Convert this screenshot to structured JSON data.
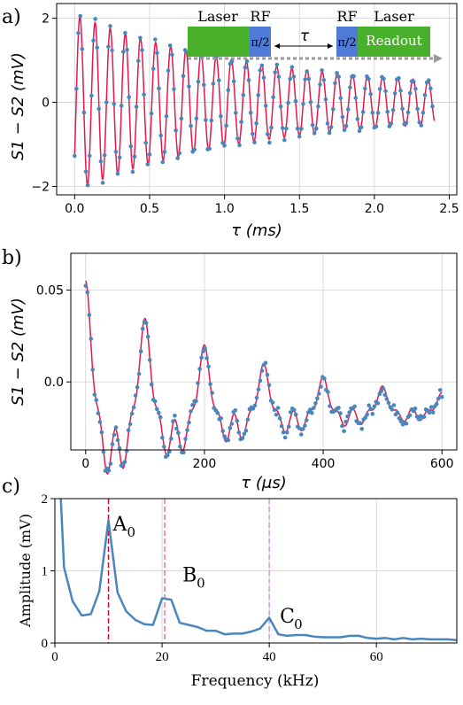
{
  "panels": {
    "a": {
      "tag": "a)"
    },
    "b": {
      "tag": "b)"
    },
    "c": {
      "tag": "c)"
    }
  },
  "schematic": {
    "laser1": "Laser",
    "rf1": "RF",
    "pulse1": "π/2",
    "tau": "τ",
    "rf2": "RF",
    "pulse2": "π/2",
    "laser2": "Laser",
    "readout": "Readout",
    "colors": {
      "laser": "#48b02a",
      "rf": "#4f7bd6",
      "arrow": "#9a9a9a"
    }
  },
  "colors": {
    "fit": "#e4184a",
    "data": "#4a86be",
    "A0": "#c8102e",
    "B0": "#e07aa0",
    "C0": "#cc99e0",
    "fft": "#4a86be"
  },
  "chart_data": [
    {
      "type": "scatter",
      "panel": "a",
      "xlabel": "τ (ms)",
      "ylabel": "S1 − S2 (mV)",
      "xlim": [
        -0.12,
        2.55
      ],
      "ylim": [
        -2.2,
        2.35
      ],
      "xticks": [
        0.0,
        0.5,
        1.0,
        1.5,
        2.0,
        2.5
      ],
      "xtick_labels": [
        "0.0",
        "0.5",
        "1.0",
        "1.5",
        "2.0",
        "2.5"
      ],
      "yticks": [
        -2,
        0,
        2
      ],
      "ytick_labels": [
        "−2",
        "0",
        "2"
      ],
      "grid": true,
      "model": {
        "amplitude_mV": 2.1,
        "frequency_kHz": 9.9,
        "decay_ms": 1.15,
        "floor_mV": 0.3,
        "phase_rad": -2.2,
        "offset_mV": 0.0
      },
      "x_range": [
        0.0,
        2.4
      ],
      "series": [
        {
          "kind": "data-points",
          "style": "dots"
        },
        {
          "kind": "fit-curve",
          "style": "line"
        }
      ]
    },
    {
      "type": "scatter",
      "panel": "b",
      "xlabel": "τ (μs)",
      "ylabel": "S1 − S2 (mV)",
      "xlim": [
        -25,
        625
      ],
      "ylim": [
        -0.037,
        0.07
      ],
      "xticks": [
        0,
        200,
        400,
        600
      ],
      "xtick_labels": [
        "0",
        "200",
        "400",
        "600"
      ],
      "yticks": [
        0.0,
        0.05
      ],
      "ytick_labels": [
        "0.0",
        "0.05"
      ],
      "grid": true,
      "model": {
        "components": [
          {
            "amplitude_mV": 0.042,
            "frequency_kHz": 10.0,
            "decay_us": 260
          },
          {
            "amplitude_mV": 0.018,
            "frequency_kHz": 20.0,
            "decay_us": 320
          },
          {
            "amplitude_mV": 0.01,
            "frequency_kHz": 40.0,
            "decay_us": 400
          }
        ],
        "offset_mV": -0.015
      },
      "x_range": [
        0,
        600
      ],
      "series": [
        {
          "kind": "data-points",
          "style": "dots"
        },
        {
          "kind": "fit-curve",
          "style": "line"
        }
      ]
    },
    {
      "type": "line",
      "panel": "c",
      "xlabel": "Frequency (kHz)",
      "ylabel": "Amplitude (mV)",
      "xlim": [
        0,
        75
      ],
      "ylim": [
        0,
        2
      ],
      "xticks": [
        0,
        20,
        40,
        60
      ],
      "xtick_labels": [
        "0",
        "20",
        "40",
        "60"
      ],
      "yticks": [
        0,
        1,
        2
      ],
      "ytick_labels": [
        "0",
        "1",
        "2"
      ],
      "grid": true,
      "x": [
        1.7,
        3.3,
        5.0,
        6.7,
        8.3,
        10.0,
        11.7,
        13.3,
        15.0,
        16.7,
        18.3,
        20.0,
        21.7,
        23.3,
        25.0,
        26.7,
        28.3,
        30.0,
        31.7,
        33.3,
        35.0,
        36.7,
        38.3,
        40.0,
        41.7,
        43.3,
        45.0,
        46.7,
        48.3,
        50.0,
        51.7,
        53.3,
        55.0,
        56.7,
        58.3,
        60.0,
        61.7,
        63.3,
        65.0,
        66.7,
        68.3,
        70.0,
        71.7,
        73.3,
        75.0
      ],
      "values": [
        1.05,
        0.58,
        0.38,
        0.4,
        0.72,
        1.7,
        0.7,
        0.44,
        0.32,
        0.26,
        0.25,
        0.62,
        0.6,
        0.28,
        0.25,
        0.22,
        0.17,
        0.17,
        0.12,
        0.13,
        0.13,
        0.16,
        0.2,
        0.35,
        0.12,
        0.1,
        0.11,
        0.11,
        0.09,
        0.08,
        0.08,
        0.08,
        0.1,
        0.1,
        0.07,
        0.06,
        0.07,
        0.05,
        0.07,
        0.05,
        0.06,
        0.05,
        0.05,
        0.05,
        0.04
      ],
      "lead_in": {
        "x": [
          1.1,
          1.7
        ],
        "values": [
          2.0,
          1.05
        ]
      },
      "markers": [
        {
          "label": "A",
          "sub": "0",
          "x": 10.0,
          "color_key": "A0"
        },
        {
          "label": "B",
          "sub": "0",
          "x": 20.5,
          "color_key": "B0"
        },
        {
          "label": "C",
          "sub": "0",
          "x": 40.0,
          "color_key": "C0"
        }
      ]
    }
  ]
}
